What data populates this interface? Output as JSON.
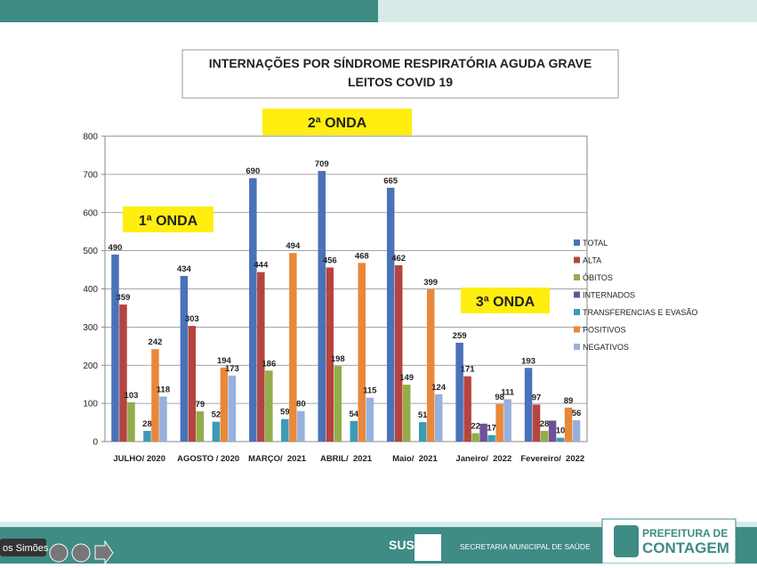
{
  "chart_data": {
    "type": "bar",
    "title": "INTERNAÇÕES  POR SÍNDROME RESPIRATÓRIA AGUDA GRAVE",
    "subtitle": "LEITOS COVID 19",
    "categories": [
      "JULHO/ 2020",
      "AGOSTO / 2020",
      "MARÇO/  2021",
      "ABRIL/  2021",
      "Maio/  2021",
      "Janeiro/  2022",
      "Fevereiro/  2022"
    ],
    "series": [
      {
        "name": "TOTAL",
        "color": "#4a72b8",
        "values": [
          490,
          434,
          690,
          709,
          665,
          259,
          193
        ]
      },
      {
        "name": "ALTA",
        "color": "#b5443f",
        "values": [
          359,
          303,
          444,
          456,
          462,
          171,
          97
        ]
      },
      {
        "name": "ÓBITOS",
        "color": "#92ad4a",
        "values": [
          103,
          79,
          186,
          198,
          149,
          22,
          28
        ]
      },
      {
        "name": "INTERNADOS",
        "color": "#6e5296",
        "values": [
          null,
          null,
          null,
          null,
          null,
          47,
          55
        ],
        "value_labels": [
          null,
          null,
          null,
          null,
          null,
          null,
          null
        ]
      },
      {
        "name": "TRANSFERENCIAS E EVASÃO",
        "color": "#3c9bb6",
        "values": [
          28,
          52,
          59,
          54,
          51,
          17,
          10
        ]
      },
      {
        "name": "POSITIVOS",
        "color": "#e8883a",
        "values": [
          242,
          194,
          494,
          468,
          399,
          98,
          89
        ]
      },
      {
        "name": "NEGATIVOS",
        "color": "#97b0dd",
        "values": [
          118,
          173,
          80,
          115,
          124,
          111,
          56
        ]
      }
    ],
    "ylim": [
      0,
      800
    ],
    "yticks": [
      0,
      100,
      200,
      300,
      400,
      500,
      600,
      700,
      800
    ],
    "grid": true,
    "legend": "right",
    "annotations": [
      "1ª ONDA",
      "2ª ONDA",
      "3ª ONDA"
    ]
  },
  "footer": {
    "sus": "SUS",
    "department": "SECRETARIA MUNICIPAL DE SAÚDE",
    "logo_line1": "PREFEITURA DE",
    "logo_line2": "CONTAGEM",
    "participant": "os Simões"
  }
}
